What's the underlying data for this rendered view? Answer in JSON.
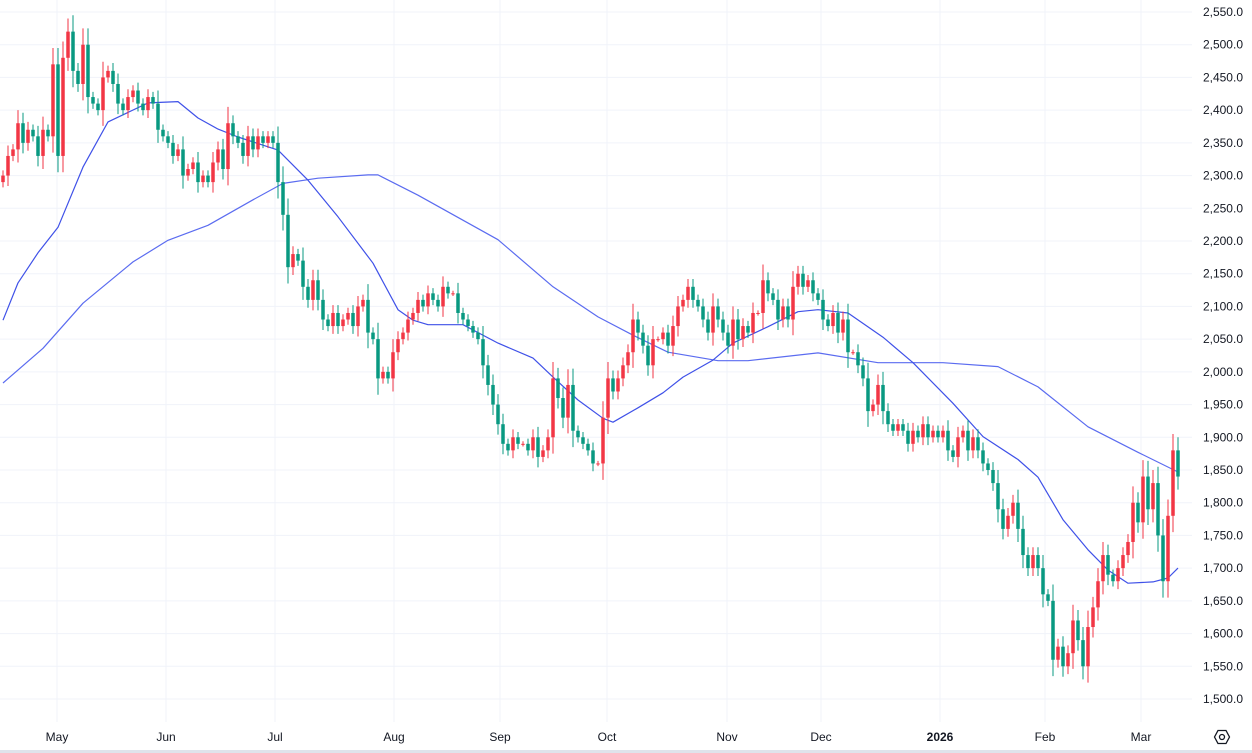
{
  "chart_data": {
    "type": "candlestick",
    "title": "",
    "xlabel": "",
    "ylabel": "",
    "ylim": [
      1500,
      2550
    ],
    "y_ticks": [
      "2,550.0",
      "2,500.0",
      "2,450.0",
      "2,400.0",
      "2,350.0",
      "2,300.0",
      "2,250.0",
      "2,200.0",
      "2,150.0",
      "2,100.0",
      "2,050.0",
      "2,000.0",
      "1,950.0",
      "1,900.0",
      "1,850.0",
      "1,800.0",
      "1,750.0",
      "1,700.0",
      "1,650.0",
      "1,600.0",
      "1,550.0",
      "1,500.0"
    ],
    "y_tick_values": [
      2550,
      2500,
      2450,
      2400,
      2350,
      2300,
      2250,
      2200,
      2150,
      2100,
      2050,
      2000,
      1950,
      1900,
      1850,
      1800,
      1750,
      1700,
      1650,
      1600,
      1550,
      1500
    ],
    "x_ticks": [
      {
        "label": "May",
        "index": 10.8,
        "bold": false
      },
      {
        "label": "Jun",
        "index": 32.6,
        "bold": false
      },
      {
        "label": "Jul",
        "index": 54.4,
        "bold": false
      },
      {
        "label": "Aug",
        "index": 78.2,
        "bold": false
      },
      {
        "label": "Sep",
        "index": 99.4,
        "bold": false
      },
      {
        "label": "Oct",
        "index": 120.8,
        "bold": false
      },
      {
        "label": "Nov",
        "index": 144.8,
        "bold": false
      },
      {
        "label": "Dec",
        "index": 163.6,
        "bold": false
      },
      {
        "label": "2026",
        "index": 187.4,
        "bold": true
      },
      {
        "label": "Feb",
        "index": 208.4,
        "bold": false
      },
      {
        "label": "Mar",
        "index": 227.6,
        "bold": false
      }
    ],
    "grid": true,
    "up_color": "#f23645",
    "down_color": "#089981",
    "ma_color_short": "#3f51e8",
    "ma_color_long": "#5b6cf0",
    "close": [
      2300,
      2330,
      2340,
      2380,
      2350,
      2370,
      2360,
      2330,
      2370,
      2360,
      2470,
      2330,
      2480,
      2520,
      2460,
      2440,
      2500,
      2420,
      2410,
      2400,
      2450,
      2460,
      2440,
      2410,
      2400,
      2420,
      2430,
      2410,
      2400,
      2420,
      2410,
      2370,
      2360,
      2350,
      2330,
      2340,
      2300,
      2310,
      2320,
      2290,
      2300,
      2290,
      2320,
      2340,
      2310,
      2380,
      2360,
      2350,
      2330,
      2360,
      2340,
      2360,
      2350,
      2360,
      2350,
      2290,
      2240,
      2160,
      2180,
      2170,
      2130,
      2110,
      2140,
      2110,
      2080,
      2070,
      2090,
      2070,
      2080,
      2090,
      2070,
      2100,
      2110,
      2060,
      2050,
      1990,
      2000,
      1990,
      2030,
      2050,
      2060,
      2080,
      2090,
      2110,
      2100,
      2120,
      2110,
      2100,
      2130,
      2120,
      2120,
      2090,
      2080,
      2070,
      2060,
      2050,
      2010,
      1980,
      1950,
      1920,
      1890,
      1880,
      1900,
      1890,
      1890,
      1880,
      1900,
      1870,
      1880,
      1900,
      1990,
      1960,
      1930,
      1980,
      1910,
      1900,
      1890,
      1880,
      1860,
      1860,
      1930,
      1990,
      1970,
      1990,
      2010,
      2030,
      2080,
      2060,
      2040,
      2010,
      2050,
      2050,
      2060,
      2040,
      2070,
      2100,
      2110,
      2130,
      2110,
      2100,
      2080,
      2060,
      2100,
      2080,
      2060,
      2040,
      2080,
      2050,
      2070,
      2060,
      2090,
      2090,
      2140,
      2120,
      2110,
      2080,
      2100,
      2080,
      2130,
      2150,
      2130,
      2140,
      2120,
      2110,
      2080,
      2070,
      2090,
      2060,
      2080,
      2030,
      2030,
      2010,
      1990,
      1940,
      1950,
      1980,
      1940,
      1920,
      1910,
      1920,
      1910,
      1890,
      1910,
      1900,
      1920,
      1900,
      1910,
      1900,
      1910,
      1880,
      1870,
      1900,
      1910,
      1880,
      1900,
      1880,
      1860,
      1850,
      1830,
      1790,
      1760,
      1780,
      1800,
      1760,
      1720,
      1700,
      1720,
      1700,
      1660,
      1650,
      1560,
      1580,
      1550,
      1570,
      1620,
      1590,
      1550,
      1610,
      1640,
      1680,
      1720,
      1690,
      1680,
      1700,
      1720,
      1740,
      1800,
      1770,
      1840,
      1790,
      1830,
      1750,
      1680,
      1780,
      1880,
      1840
    ],
    "ma_short": [
      [
        0,
        2079
      ],
      [
        3,
        2136
      ],
      [
        7,
        2182
      ],
      [
        11,
        2221
      ],
      [
        16,
        2313
      ],
      [
        21,
        2382
      ],
      [
        29,
        2411
      ],
      [
        35,
        2413
      ],
      [
        39,
        2388
      ],
      [
        43,
        2371
      ],
      [
        47,
        2359
      ],
      [
        55,
        2339
      ],
      [
        61,
        2293
      ],
      [
        67,
        2237
      ],
      [
        74,
        2166
      ],
      [
        79,
        2095
      ],
      [
        82,
        2079
      ],
      [
        85,
        2072
      ],
      [
        92,
        2072
      ],
      [
        99,
        2044
      ],
      [
        106,
        2021
      ],
      [
        110,
        1992
      ],
      [
        115,
        1957
      ],
      [
        120,
        1929
      ],
      [
        122,
        1923
      ],
      [
        127,
        1945
      ],
      [
        132,
        1968
      ],
      [
        136,
        1992
      ],
      [
        142,
        2018
      ],
      [
        146,
        2044
      ],
      [
        153,
        2069
      ],
      [
        159,
        2092
      ],
      [
        163,
        2095
      ],
      [
        169,
        2090
      ],
      [
        176,
        2053
      ],
      [
        182,
        2014
      ],
      [
        190,
        1952
      ],
      [
        196,
        1901
      ],
      [
        203,
        1866
      ],
      [
        207,
        1839
      ],
      [
        212,
        1774
      ],
      [
        217,
        1728
      ],
      [
        221,
        1697
      ],
      [
        225,
        1677
      ],
      [
        230,
        1679
      ],
      [
        233,
        1685
      ],
      [
        235,
        1700
      ]
    ],
    "ma_long": [
      [
        0,
        1983
      ],
      [
        8,
        2036
      ],
      [
        16,
        2105
      ],
      [
        26,
        2168
      ],
      [
        33,
        2201
      ],
      [
        41,
        2224
      ],
      [
        50,
        2263
      ],
      [
        56,
        2288
      ],
      [
        63,
        2296
      ],
      [
        73,
        2301
      ],
      [
        75,
        2301
      ],
      [
        83,
        2270
      ],
      [
        99,
        2202
      ],
      [
        110,
        2130
      ],
      [
        119,
        2084
      ],
      [
        126,
        2056
      ],
      [
        133,
        2030
      ],
      [
        143,
        2017
      ],
      [
        149,
        2017
      ],
      [
        163,
        2029
      ],
      [
        175,
        2014
      ],
      [
        188,
        2014
      ],
      [
        199,
        2008
      ],
      [
        207,
        1977
      ],
      [
        217,
        1916
      ],
      [
        227,
        1877
      ],
      [
        235,
        1847
      ]
    ]
  },
  "settings_icon": "gear-icon"
}
